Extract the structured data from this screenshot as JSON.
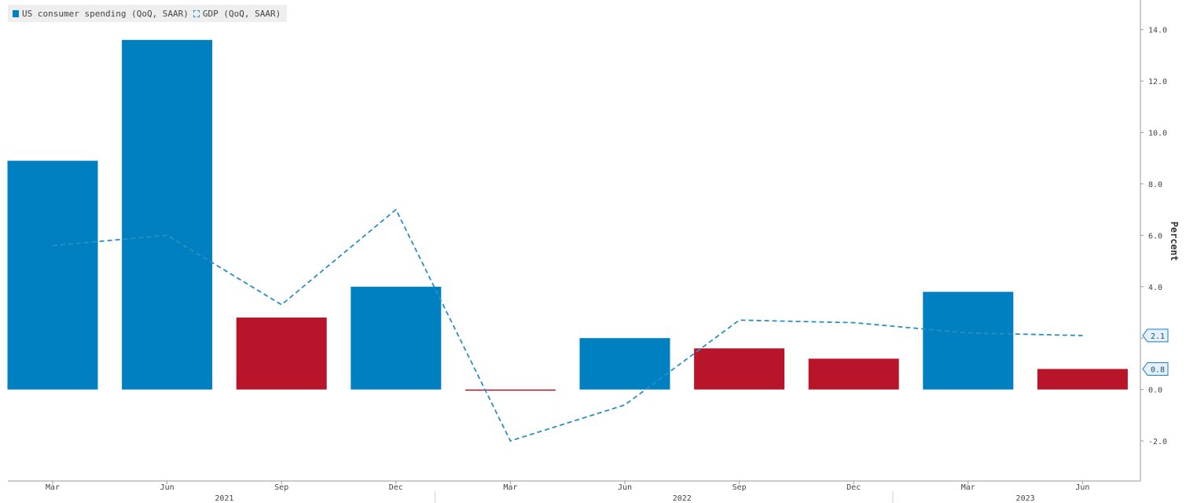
{
  "legend": {
    "spending_label": "US consumer spending (QoQ, SAAR)",
    "gdp_label": "GDP (QoQ, SAAR)"
  },
  "colors": {
    "bar_positive_blue": "#0080c0",
    "bar_red": "#b9152a",
    "gdp_line": "#2a8fc4",
    "axis": "#9a9a9a",
    "tag_fill": "#e4f1fa",
    "tag_stroke": "#1c7fc0"
  },
  "chart_data": {
    "type": "bar",
    "categories": [
      "Mar",
      "Jun",
      "Sep",
      "Dec",
      "Mar",
      "Jun",
      "Sep",
      "Dec",
      "Mar",
      "Jun"
    ],
    "years": [
      {
        "label": "2021",
        "span": [
          0,
          3
        ]
      },
      {
        "label": "2022",
        "span": [
          4,
          7
        ]
      },
      {
        "label": "2023",
        "span": [
          8,
          9
        ]
      }
    ],
    "series": [
      {
        "name": "US consumer spending (QoQ, SAAR)",
        "kind": "bar",
        "values": [
          8.9,
          13.6,
          2.8,
          4.0,
          0.0,
          2.0,
          1.6,
          1.2,
          3.8,
          0.8
        ],
        "bar_colors": [
          "blue",
          "blue",
          "red",
          "blue",
          "red",
          "blue",
          "red",
          "red",
          "blue",
          "red"
        ]
      },
      {
        "name": "GDP (QoQ, SAAR)",
        "kind": "line-dashed",
        "values": [
          5.6,
          6.0,
          3.3,
          7.0,
          -2.0,
          -0.6,
          2.7,
          2.6,
          2.2,
          2.1
        ]
      }
    ],
    "y_axis": {
      "label": "Percent",
      "side": "right",
      "ticks": [
        "14.0",
        "12.0",
        "10.0",
        "8.0",
        "6.0",
        "4.0",
        "2.0",
        "0.0",
        "-2.0"
      ],
      "tick_values": [
        14,
        12,
        10,
        8,
        6,
        4,
        2,
        0,
        -2
      ],
      "range": [
        -3.1,
        15.0
      ]
    },
    "last_value_tags": [
      {
        "series": "GDP (QoQ, SAAR)",
        "value": 2.1,
        "label": "2.1"
      },
      {
        "series": "US consumer spending (QoQ, SAAR)",
        "value": 0.8,
        "label": "0.8"
      }
    ],
    "grid": false
  }
}
